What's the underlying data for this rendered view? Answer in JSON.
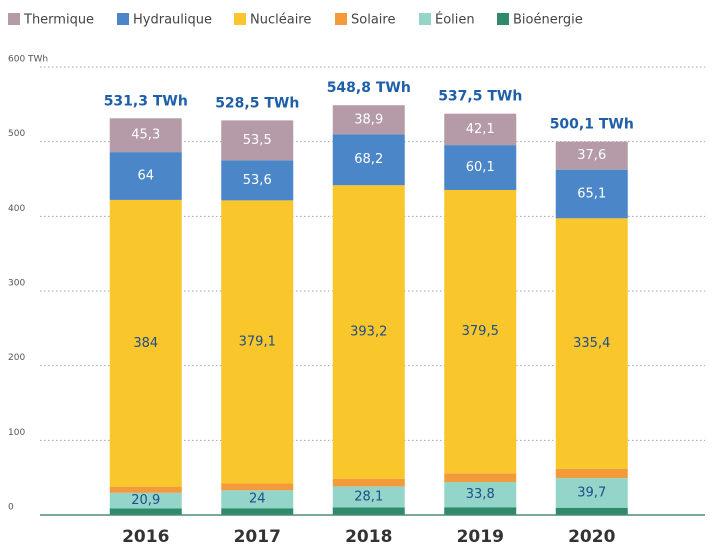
{
  "chart_data": {
    "type": "stacked_bar",
    "categories": [
      "2016",
      "2017",
      "2018",
      "2019",
      "2020"
    ],
    "series": [
      {
        "name": "Bioénergie",
        "color": "#2e8a6a",
        "values": [
          8.8,
          9.1,
          10.2,
          10.4,
          9.7
        ]
      },
      {
        "name": "Éolien",
        "color": "#93d5c8",
        "values": [
          20.9,
          24,
          28.1,
          33.8,
          39.7
        ],
        "value_labels": [
          "20,9",
          "24",
          "28,1",
          "33,8",
          "39,7"
        ]
      },
      {
        "name": "Solaire",
        "color": "#f39a3a",
        "values": [
          8.3,
          9.2,
          10.2,
          11.6,
          12.6
        ]
      },
      {
        "name": "Nucléaire",
        "color": "#f9c62b",
        "values": [
          384,
          379.1,
          393.2,
          379.5,
          335.4
        ],
        "value_labels": [
          "384",
          "379,1",
          "393,2",
          "379,5",
          "335,4"
        ]
      },
      {
        "name": "Hydraulique",
        "color": "#4a86c8",
        "values": [
          64,
          53.6,
          68.2,
          60.1,
          65.1
        ],
        "value_labels": [
          "64",
          "53,6",
          "68,2",
          "60,1",
          "65,1"
        ]
      },
      {
        "name": "Thermique",
        "color": "#b49ba7",
        "values": [
          45.3,
          53.5,
          38.9,
          42.1,
          37.6
        ],
        "value_labels": [
          "45,3",
          "53,5",
          "38,9",
          "42,1",
          "37,6"
        ]
      }
    ],
    "totals": [
      531.3,
      528.5,
      548.8,
      537.5,
      500.1
    ],
    "totals_labels": [
      "531,3 TWh",
      "528,5 TWh",
      "548,8 TWh",
      "537,5 TWh",
      "500,1 TWh"
    ],
    "ylim": [
      0,
      600
    ],
    "yticks": [
      0,
      100,
      200,
      300,
      400,
      500,
      {
        "value": 600,
        "label": "600 TWh"
      }
    ],
    "grid": true
  }
}
